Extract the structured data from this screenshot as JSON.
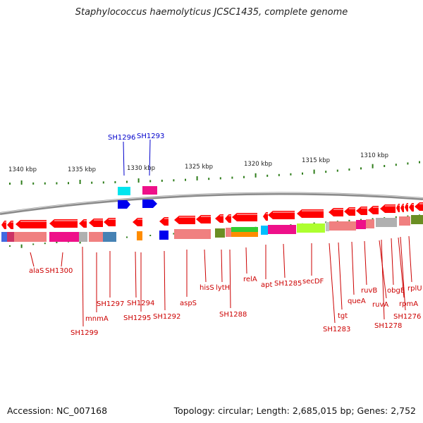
{
  "title": "Staphylococcus haemolyticus JCSC1435, complete genome",
  "footer": {
    "accession": "Accession: NC_007168",
    "summary": "Topology: circular; Length: 2,685,015 bp; Genes: 2,752"
  },
  "scale_labels": [
    "1340 kbp",
    "1335 kbp",
    "1330 kbp",
    "1325 kbp",
    "1320 kbp",
    "1315 kbp",
    "1310 kbp"
  ],
  "gene_labels_top": [
    "SH1296",
    "SH1293"
  ],
  "gene_labels_bottom": [
    "alaS",
    "SH1300",
    "SH1299",
    "mnmA",
    "SH1297",
    "SH1294",
    "SH1295",
    "SH1292",
    "aspS",
    "hisS",
    "lytH",
    "SH1288",
    "relA",
    "apt",
    "SH1285",
    "secDF",
    "SH1283",
    "tgt",
    "queA",
    "ruvB",
    "ruvA",
    "SH1278",
    "obgE",
    "rpmA",
    "SH1276",
    "rplU"
  ],
  "colors": {
    "gene_arrow": "#ff0000",
    "top_label": "#0000cc",
    "bottom_label": "#cc0000",
    "tick": "#2e7d1a",
    "backbone": "#8a8a8a"
  }
}
